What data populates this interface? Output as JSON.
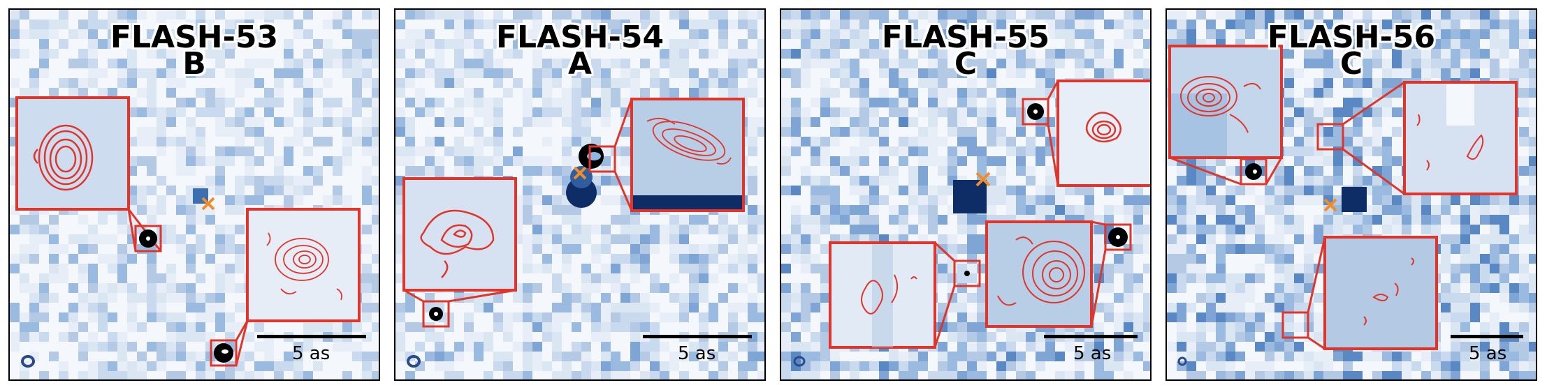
{
  "panels": [
    {
      "name": "FLASH-53",
      "code": "B",
      "scale_label": "5 as"
    },
    {
      "name": "FLASH-54",
      "code": "A",
      "scale_label": "5 as"
    },
    {
      "name": "FLASH-55",
      "code": "C",
      "scale_label": "5 as"
    },
    {
      "name": "FLASH-56",
      "code": "C",
      "scale_label": "5 as"
    }
  ],
  "colors": {
    "inset_frame": "#e0352b",
    "contour": "#e0352b",
    "target_marker": "#f28c28",
    "beam": "#2b4a8a",
    "colormap": "Blues"
  },
  "markers": {
    "target": "x-cross",
    "companion": "black-filled-source"
  }
}
